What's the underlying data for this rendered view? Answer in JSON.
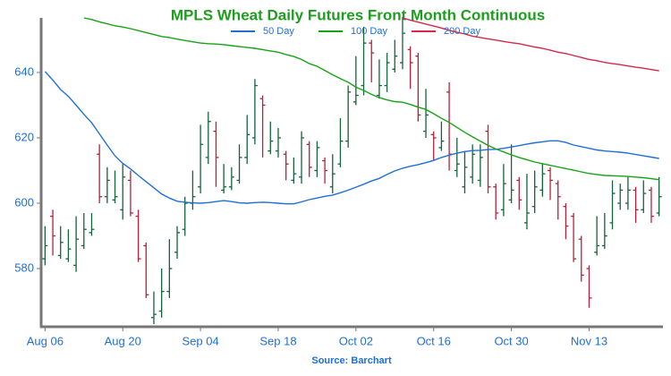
{
  "chart_data": {
    "type": "ohlc",
    "title": "MPLS Wheat Daily Futures Front Month Continuous",
    "source": "Source: Barchart",
    "categories": [
      "Aug 06",
      null,
      null,
      null,
      null,
      null,
      null,
      null,
      null,
      null,
      "Aug 20",
      null,
      null,
      null,
      null,
      null,
      null,
      null,
      null,
      null,
      "Sep 04",
      null,
      null,
      null,
      null,
      null,
      null,
      null,
      null,
      null,
      "Sep 18",
      null,
      null,
      null,
      null,
      null,
      null,
      null,
      null,
      null,
      "Oct 02",
      null,
      null,
      null,
      null,
      null,
      null,
      null,
      null,
      null,
      "Oct 16",
      null,
      null,
      null,
      null,
      null,
      null,
      null,
      null,
      null,
      "Oct 30",
      null,
      null,
      null,
      null,
      null,
      null,
      null,
      null,
      null,
      "Nov 13",
      null,
      null,
      null,
      null,
      null,
      null,
      null,
      null,
      null
    ],
    "ohlc": {
      "open": [
        583,
        596,
        584,
        583,
        581,
        587,
        591,
        615,
        602,
        601,
        598,
        607,
        596,
        587,
        565,
        567,
        573,
        585,
        592,
        600,
        605,
        614,
        622,
        604,
        605,
        607,
        614,
        620,
        632,
        616,
        616,
        615,
        607,
        608,
        618,
        610,
        613,
        605,
        612,
        619,
        631,
        636,
        649,
        633,
        636,
        641,
        643,
        647,
        645,
        622,
        621,
        617,
        634,
        610,
        605,
        608,
        607,
        622,
        605,
        598,
        601,
        607,
        594,
        599,
        604,
        610,
        606,
        599,
        596,
        589,
        580,
        585,
        587,
        594,
        600,
        600,
        604,
        598,
        604,
        597
      ],
      "high": [
        593,
        598,
        593,
        592,
        596,
        597,
        597,
        618,
        611,
        610,
        612,
        610,
        598,
        588,
        573,
        580,
        589,
        593,
        602,
        610,
        624,
        628,
        625,
        612,
        611,
        618,
        627,
        638,
        633,
        625,
        623,
        616,
        614,
        622,
        619,
        619,
        614,
        615,
        626,
        636,
        645,
        654,
        650,
        644,
        646,
        650,
        657,
        648,
        646,
        635,
        622,
        625,
        637,
        620,
        616,
        618,
        618,
        624,
        606,
        612,
        618,
        608,
        609,
        610,
        612,
        611,
        607,
        600,
        597,
        590,
        581,
        596,
        597,
        607,
        606,
        608,
        605,
        607,
        605,
        608
      ],
      "low": [
        581,
        584,
        583,
        582,
        579,
        586,
        590,
        600,
        600,
        600,
        595,
        596,
        582,
        571,
        563,
        565,
        571,
        583,
        590,
        598,
        603,
        612,
        605,
        603,
        604,
        606,
        612,
        618,
        614,
        615,
        614,
        607,
        606,
        606,
        608,
        608,
        606,
        603,
        611,
        617,
        630,
        633,
        637,
        632,
        634,
        640,
        641,
        635,
        625,
        620,
        613,
        616,
        610,
        608,
        603,
        606,
        605,
        603,
        595,
        596,
        600,
        598,
        592,
        597,
        602,
        601,
        595,
        589,
        582,
        576,
        568,
        584,
        586,
        592,
        598,
        598,
        594,
        597,
        594,
        596
      ],
      "close": [
        587,
        590,
        588,
        586,
        589,
        592,
        592,
        602,
        607,
        602,
        608,
        597,
        583,
        572,
        566,
        573,
        580,
        591,
        600,
        602,
        618,
        625,
        614,
        605,
        608,
        614,
        621,
        636,
        630,
        619,
        620,
        612,
        609,
        620,
        611,
        617,
        610,
        609,
        619,
        634,
        633,
        649,
        646,
        636,
        643,
        645,
        652,
        643,
        627,
        627,
        620,
        619,
        615,
        612,
        611,
        615,
        614,
        605,
        597,
        606,
        604,
        601,
        597,
        605,
        609,
        607,
        602,
        593,
        583,
        578,
        571,
        587,
        590,
        603,
        604,
        604,
        598,
        603,
        596,
        602
      ]
    },
    "up_color": "#14633a",
    "down_color": "#b5213a",
    "series": [
      {
        "name": "50 Day",
        "color": "#1f6fd6",
        "values": [
          640.3,
          637.7,
          634.8,
          632.7,
          630,
          627.2,
          624.6,
          621.2,
          617.8,
          614.5,
          612.2,
          610.5,
          608.5,
          606.6,
          604.7,
          602.8,
          601.6,
          600.6,
          600.3,
          600.1,
          600,
          600.2,
          600.5,
          600.8,
          600.5,
          600.1,
          600,
          600.2,
          600.3,
          600.2,
          600,
          599.8,
          599.8,
          600.4,
          601.1,
          601.6,
          602.1,
          602.5,
          603.2,
          604,
          604.9,
          605.8,
          606.8,
          607.6,
          608.8,
          609.9,
          610.7,
          611.3,
          611.8,
          612.4,
          613.1,
          614,
          614.7,
          615.3,
          615.8,
          616.1,
          616.2,
          616.4,
          616.5,
          616.8,
          617.2,
          617.6,
          618.1,
          618.5,
          618.8,
          619.1,
          619.1,
          618.6,
          617.8,
          617.3,
          616.8,
          616.3,
          616,
          615.8,
          615.6,
          615.3,
          614.9,
          614.5,
          614.1,
          613.7
        ]
      },
      {
        "name": "100 Day",
        "color": "#17a317",
        "values": [
          null,
          null,
          null,
          null,
          null,
          656.7,
          656.2,
          655.5,
          654.9,
          654.3,
          653.9,
          653.4,
          652.8,
          652.2,
          651.6,
          651,
          650.7,
          650.2,
          649.8,
          649.4,
          649,
          648.8,
          648.7,
          648.5,
          648.2,
          647.9,
          647.7,
          647.4,
          647,
          646.6,
          646.2,
          645.5,
          644.9,
          644,
          642.7,
          641.9,
          640.6,
          639.3,
          638.1,
          637,
          635.5,
          634.5,
          633.3,
          632.3,
          631.6,
          631.1,
          630.9,
          630.2,
          629.4,
          628.7,
          627.4,
          626,
          624.7,
          623.2,
          621.7,
          620.3,
          619,
          617.7,
          616.6,
          615.7,
          614.8,
          614,
          613.3,
          612.6,
          612.1,
          611.6,
          611.1,
          610.6,
          610.1,
          609.6,
          609.1,
          608.8,
          608.5,
          608.4,
          608.3,
          608.2,
          608,
          607.8,
          607.5,
          607.2
        ]
      },
      {
        "name": "200 Day",
        "color": "#d6284a",
        "values": [
          null,
          null,
          null,
          null,
          null,
          null,
          null,
          null,
          null,
          null,
          null,
          null,
          null,
          null,
          null,
          null,
          null,
          null,
          null,
          null,
          null,
          null,
          null,
          null,
          null,
          null,
          null,
          null,
          null,
          null,
          null,
          null,
          null,
          null,
          null,
          null,
          null,
          null,
          null,
          null,
          null,
          null,
          null,
          null,
          null,
          null,
          656.7,
          656,
          655.4,
          654.8,
          654.2,
          653.6,
          652.9,
          652.3,
          651.8,
          651.1,
          650.7,
          650.3,
          649.9,
          649.5,
          649.1,
          648.8,
          648.3,
          647.8,
          647.4,
          646.8,
          646.2,
          645.8,
          645.2,
          644.6,
          644,
          643.6,
          643.1,
          642.7,
          642.4,
          642,
          641.6,
          641.3,
          640.9,
          640.5
        ]
      }
    ],
    "ylim": [
      562.2,
      656.7
    ],
    "yticks": [
      580,
      600,
      620,
      640
    ],
    "legend": "top"
  }
}
